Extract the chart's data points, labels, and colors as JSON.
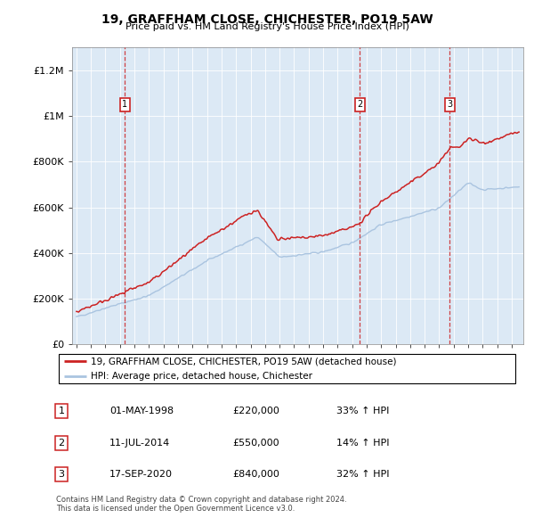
{
  "title": "19, GRAFFHAM CLOSE, CHICHESTER, PO19 5AW",
  "subtitle": "Price paid vs. HM Land Registry's House Price Index (HPI)",
  "purchases": [
    {
      "date_num": 1998.33,
      "price": 220000,
      "label": "1",
      "date_str": "01-MAY-1998",
      "pct": "33% ↑ HPI"
    },
    {
      "date_num": 2014.53,
      "price": 550000,
      "label": "2",
      "date_str": "11-JUL-2014",
      "pct": "14% ↑ HPI"
    },
    {
      "date_num": 2020.72,
      "price": 840000,
      "label": "3",
      "date_str": "17-SEP-2020",
      "pct": "32% ↑ HPI"
    }
  ],
  "legend_line1": "19, GRAFFHAM CLOSE, CHICHESTER, PO19 5AW (detached house)",
  "legend_line2": "HPI: Average price, detached house, Chichester",
  "footer1": "Contains HM Land Registry data © Crown copyright and database right 2024.",
  "footer2": "This data is licensed under the Open Government Licence v3.0.",
  "hpi_color": "#aac4e0",
  "price_color": "#cc2222",
  "bg_color": "#dce9f5",
  "ylim_max": 1300000,
  "xlim_min": 1994.7,
  "xlim_max": 2025.8,
  "yticks": [
    0,
    200000,
    400000,
    600000,
    800000,
    1000000,
    1200000
  ],
  "ytick_labels": [
    "£0",
    "£200K",
    "£400K",
    "£600K",
    "£800K",
    "£1M",
    "£1.2M"
  ]
}
